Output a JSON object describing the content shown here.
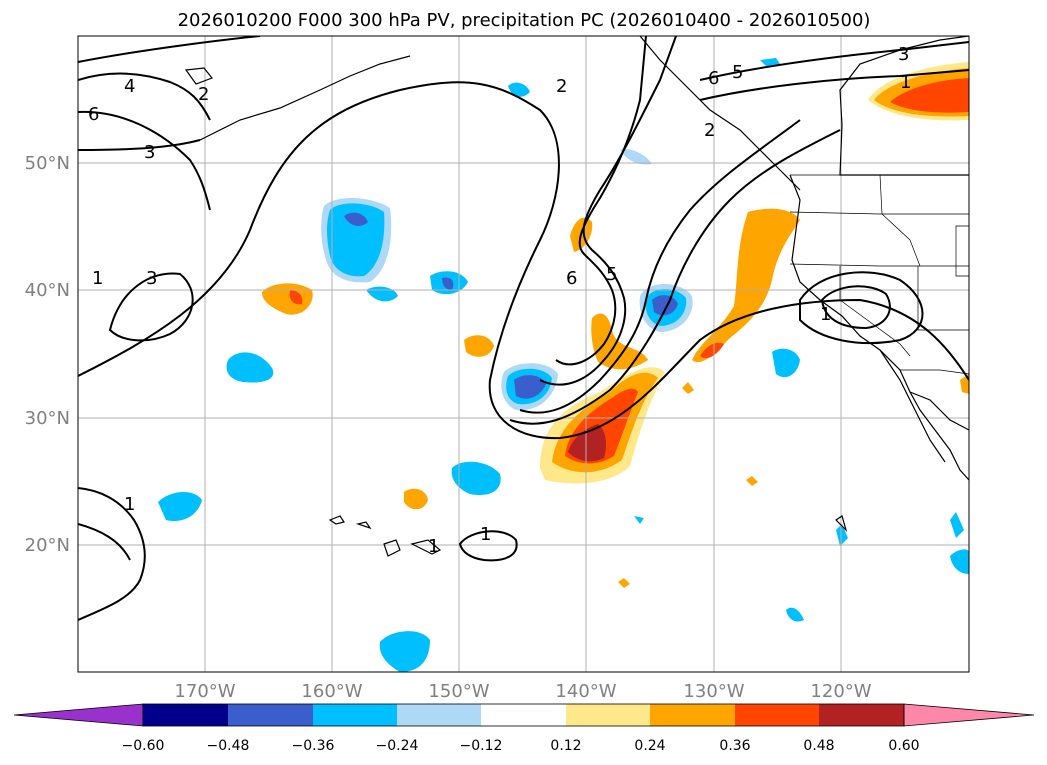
{
  "title": "2026010200 F000 300 hPa PV, precipitation PC (2026010400 - 2026010500)",
  "map": {
    "lat_labels": [
      "50°N",
      "40°N",
      "30°N",
      "20°N"
    ],
    "lon_labels": [
      "170°W",
      "160°W",
      "150°W",
      "140°W",
      "130°W",
      "120°W"
    ],
    "contour_labels": [
      "4",
      "2",
      "6",
      "3",
      "1",
      "3",
      "1",
      "5",
      "6",
      "2",
      "6",
      "5",
      "3",
      "1",
      "1",
      "1",
      "1",
      "2"
    ],
    "grid": true
  },
  "colorbar": {
    "ticks": [
      "−0.60",
      "−0.48",
      "−0.36",
      "−0.24",
      "−0.12",
      "0.12",
      "0.24",
      "0.36",
      "0.48",
      "0.60"
    ],
    "colors": [
      "#9932cc",
      "#00008b",
      "#3a5fcd",
      "#00bfff",
      "#add8f6",
      "#ffffff",
      "#ffe88a",
      "#ffa500",
      "#ff4500",
      "#b22222",
      "#ff88aa"
    ],
    "extend": "both"
  },
  "palette": {
    "pos1": "#ffe88a",
    "pos2": "#ffa500",
    "pos3": "#ff4500",
    "pos4": "#b22222",
    "neg1": "#add8f6",
    "neg2": "#00bfff",
    "neg3": "#3a5fcd",
    "neg4": "#00008b"
  }
}
